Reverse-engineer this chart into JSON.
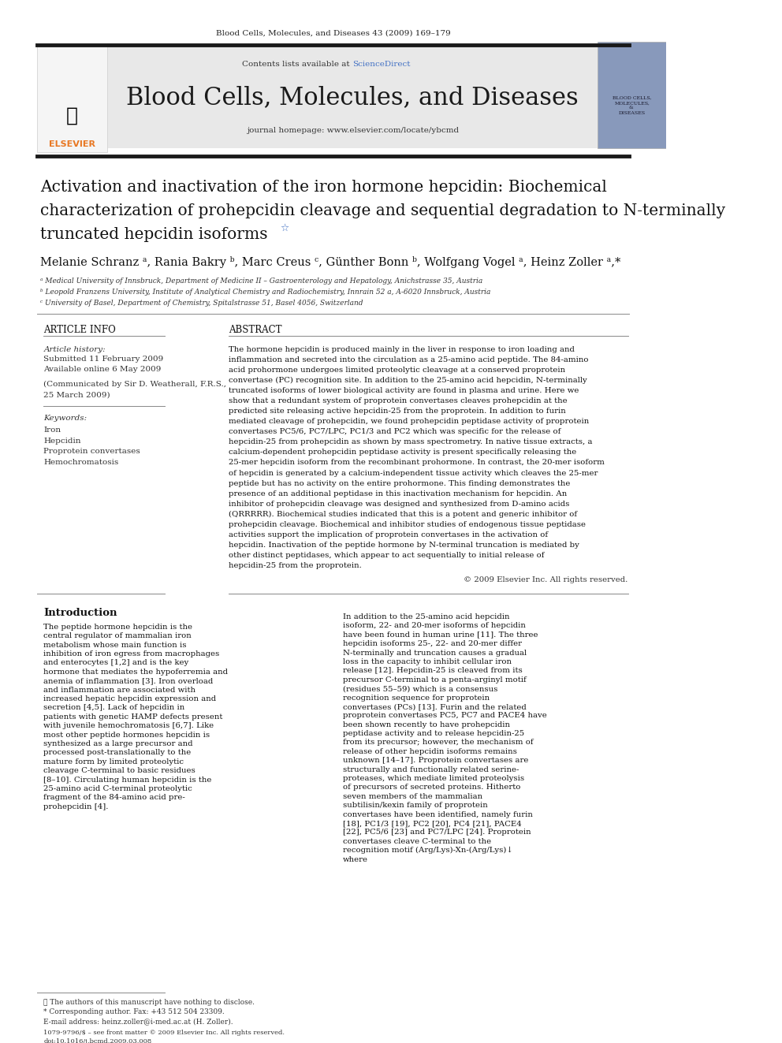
{
  "page_bg": "#ffffff",
  "header_journal": "Blood Cells, Molecules, and Diseases 43 (2009) 169–179",
  "journal_name": "Blood Cells, Molecules, and Diseases",
  "contents_text": "Contents lists available at ",
  "sciencedirect_text": "ScienceDirect",
  "homepage_text": "journal homepage: www.elsevier.com/locate/ybcmd",
  "header_bar_color": "#2b2b2b",
  "header_bg": "#e8e8e8",
  "article_title_line1": "Activation and inactivation of the iron hormone hepcidin: Biochemical",
  "article_title_line2": "characterization of prohepcidin cleavage and sequential degradation to N-terminally",
  "article_title_line3": "truncated hepcidin isoforms",
  "authors": "Melanie Schranz ᵃ, Rania Bakry ᵇ, Marc Creus ᶜ, Günther Bonn ᵇ, Wolfgang Vogel ᵃ, Heinz Zoller ᵃ,*",
  "affil_a": "ᵃ Medical University of Innsbruck, Department of Medicine II – Gastroenterology and Hepatology, Anichstrasse 35, Austria",
  "affil_b": "ᵇ Leopold Franzens University, Institute of Analytical Chemistry and Radiochemistry, Innrain 52 a, A-6020 Innsbruck, Austria",
  "affil_c": "ᶜ University of Basel, Department of Chemistry, Spitalstrasse 51, Basel 4056, Switzerland",
  "article_info_header": "ARTICLE INFO",
  "abstract_header": "ABSTRACT",
  "article_history_label": "Article history:",
  "submitted": "Submitted 11 February 2009",
  "available": "Available online 6 May 2009",
  "communicated": "(Communicated by Sir D. Weatherall, F.R.S.,\n25 March 2009)",
  "keywords_label": "Keywords:",
  "keywords": [
    "Iron",
    "Hepcidin",
    "Proprotein convertases",
    "Hemochromatosis"
  ],
  "abstract_text": "The hormone hepcidin is produced mainly in the liver in response to iron loading and inflammation and secreted into the circulation as a 25-amino acid peptide. The 84-amino acid prohormone undergoes limited proteolytic cleavage at a conserved proprotein convertase (PC) recognition site. In addition to the 25-amino acid hepcidin, N-terminally truncated isoforms of lower biological activity are found in plasma and urine. Here we show that a redundant system of proprotein convertases cleaves prohepcidin at the predicted site releasing active hepcidin-25 from the proprotein. In addition to furin mediated cleavage of prohepcidin, we found prohepcidin peptidase activity of proprotein convertases PC5/6, PC7/LPC, PC1/3 and PC2 which was specific for the release of hepcidin-25 from prohepcidin as shown by mass spectrometry. In native tissue extracts, a calcium-dependent prohepcidin peptidase activity is present specifically releasing the 25-mer hepcidin isoform from the recombinant prohormone. In contrast, the 20-mer isoform of hepcidin is generated by a calcium-independent tissue activity which cleaves the 25-mer peptide but has no activity on the entire prohormone. This finding demonstrates the presence of an additional peptidase in this inactivation mechanism for hepcidin. An inhibitor of prohepcidin cleavage was designed and synthesized from D-amino acids (QRRRRR). Biochemical studies indicated that this is a potent and generic inhibitor of prohepcidin cleavage. Biochemical and inhibitor studies of endogenous tissue peptidase activities support the implication of proprotein convertases in the activation of hepcidin. Inactivation of the peptide hormone by N-terminal truncation is mediated by other distinct peptidases, which appear to act sequentially to initial release of hepcidin-25 from the proprotein.",
  "copyright": "© 2009 Elsevier Inc. All rights reserved.",
  "intro_header": "Introduction",
  "intro_left": "The peptide hormone hepcidin is the central regulator of mammalian iron metabolism whose main function is inhibition of iron egress from macrophages and enterocytes [1,2] and is the key hormone that mediates the hypoferremia and anemia of inflammation [3]. Iron overload and inflammation are associated with increased hepatic hepcidin expression and secretion [4,5]. Lack of hepcidin in patients with genetic HAMP defects present with juvenile hemochromatosis [6,7]. Like most other peptide hormones hepcidin is synthesized as a large precursor and processed post-translationally to the mature form by limited proteolytic cleavage C-terminal to basic residues [8–10]. Circulating human hepcidin is the 25-amino acid C-terminal proteolytic fragment of the 84-amino acid pre-prohepcidin [4].",
  "footnote_star": "★ The authors of this manuscript have nothing to disclose.",
  "footnote_corr": "* Corresponding author. Fax: +43 512 504 23309.",
  "footnote_email": "E-mail address: heinz.zoller@i-med.ac.at (H. Zoller).",
  "issn_text": "1079-9796/$ – see front matter © 2009 Elsevier Inc. All rights reserved.",
  "doi_text": "doi:10.1016/j.bcmd.2009.03.008",
  "intro_right": "In addition to the 25-amino acid hepcidin isoform, 22- and 20-mer isoforms of hepcidin have been found in human urine [11]. The three hepcidin isoforms 25-, 22- and 20-mer differ N-terminally and truncation causes a gradual loss in the capacity to inhibit cellular iron release [12].\n    Hepcidin-25 is cleaved from its precursor C-terminal to a penta-arginyl motif (residues 55–59) which is a consensus recognition sequence for proprotein convertases (PCs) [13]. Furin and the related proprotein convertases PC5, PC7 and PACE4 have been shown recently to have prohepcidin peptidase activity and to release hepcidin-25 from its precursor; however, the mechanism of release of other hepcidin isoforms remains unknown [14–17].\n    Proprotein convertases are structurally and functionally related serine-proteases, which mediate limited proteolysis of precursors of secreted proteins. Hitherto seven members of the mammalian subtilisin/kexin family of proprotein convertases have been identified, namely furin [18], PC1/3 [19], PC2 [20], PC4 [21], PACE4 [22], PC5/6 [23] and PC7/LPC [24]. Proprotein convertases cleave C-terminal to the recognition motif (Arg/Lys)-Xn-(Arg/Lys)↓ where"
}
